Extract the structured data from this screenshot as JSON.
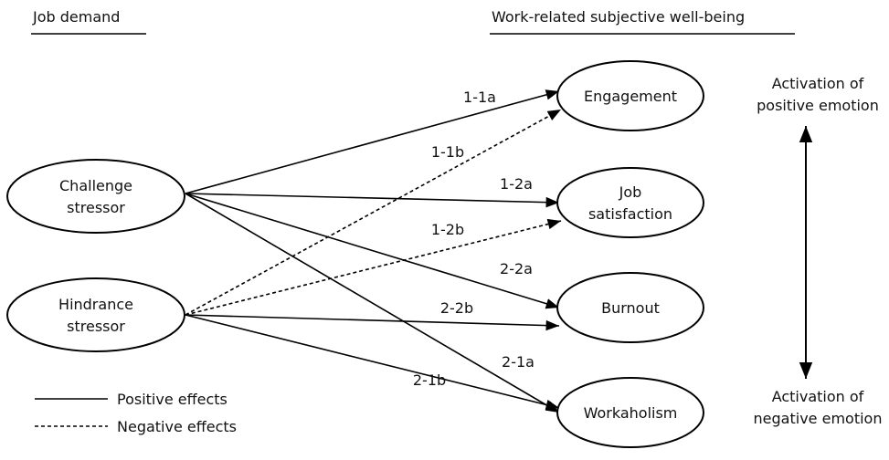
{
  "headers": [
    "Job demand",
    "Work-related subjective well-being"
  ],
  "nodes": [
    {
      "lines": [
        "Challenge",
        "stressor"
      ]
    },
    {
      "lines": [
        "Hindrance",
        "stressor"
      ]
    },
    {
      "lines": [
        "Engagement"
      ]
    },
    {
      "lines": [
        "Job",
        "satisfaction"
      ]
    },
    {
      "lines": [
        "Burnout"
      ]
    },
    {
      "lines": [
        "Workaholism"
      ]
    }
  ],
  "edges": [
    {
      "label": "1-1a",
      "style": "solid"
    },
    {
      "label": "1-2a",
      "style": "solid"
    },
    {
      "label": "2-2a",
      "style": "solid"
    },
    {
      "label": "2-1a",
      "style": "solid"
    },
    {
      "label": "1-1b",
      "style": "dashed"
    },
    {
      "label": "1-2b",
      "style": "dashed"
    },
    {
      "label": "2-2b",
      "style": "solid"
    },
    {
      "label": "2-1b",
      "style": "solid"
    }
  ],
  "scale_labels": [
    {
      "lines": [
        "Activation of",
        "positive emotion"
      ]
    },
    {
      "lines": [
        "Activation of",
        "negative emotion"
      ]
    }
  ],
  "legend": [
    "Positive effects",
    "Negative effects"
  ]
}
